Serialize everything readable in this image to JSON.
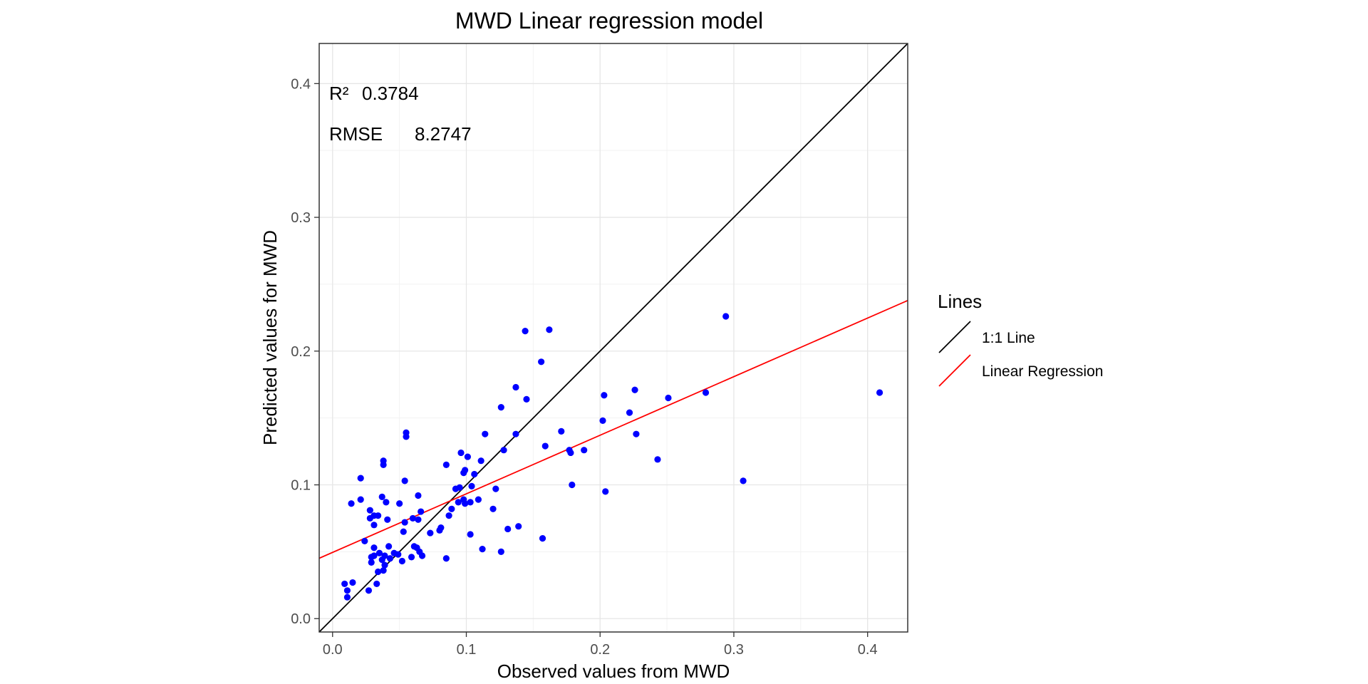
{
  "chart_data": {
    "type": "scatter",
    "title": "MWD  Linear regression model",
    "xlabel": "Observed values from MWD",
    "ylabel": "Predicted values for MWD",
    "xlim": [
      -0.01,
      0.43
    ],
    "ylim": [
      -0.01,
      0.43
    ],
    "x_ticks": [
      0.0,
      0.1,
      0.2,
      0.3,
      0.4
    ],
    "y_ticks": [
      0.0,
      0.1,
      0.2,
      0.3,
      0.4
    ],
    "x_tick_labels": [
      "0.0",
      "0.1",
      "0.2",
      "0.3",
      "0.4"
    ],
    "y_tick_labels": [
      "0.0",
      "0.1",
      "0.2",
      "0.3",
      "0.4"
    ],
    "grid": true,
    "annotations": {
      "r2_label": "R²",
      "r2_value": "0.3784",
      "rmse_label": "RMSE",
      "rmse_value": "8.2747"
    },
    "legend": {
      "title": "Lines",
      "position": "right",
      "entries": [
        "1:1 Line",
        "Linear Regression"
      ]
    },
    "lines": {
      "identity": {
        "name": "1:1 Line",
        "slope": 1.0,
        "intercept": 0.0,
        "color": "#000000"
      },
      "regression": {
        "name": "Linear Regression",
        "slope": 0.438,
        "intercept": 0.0495,
        "color": "#ff0000"
      }
    },
    "point_color": "#0000ff",
    "points": [
      {
        "x": 0.009,
        "y": 0.026
      },
      {
        "x": 0.011,
        "y": 0.021
      },
      {
        "x": 0.011,
        "y": 0.016
      },
      {
        "x": 0.015,
        "y": 0.027
      },
      {
        "x": 0.014,
        "y": 0.086
      },
      {
        "x": 0.021,
        "y": 0.105
      },
      {
        "x": 0.021,
        "y": 0.089
      },
      {
        "x": 0.024,
        "y": 0.058
      },
      {
        "x": 0.027,
        "y": 0.021
      },
      {
        "x": 0.028,
        "y": 0.081
      },
      {
        "x": 0.028,
        "y": 0.075
      },
      {
        "x": 0.029,
        "y": 0.046
      },
      {
        "x": 0.029,
        "y": 0.042
      },
      {
        "x": 0.031,
        "y": 0.053
      },
      {
        "x": 0.031,
        "y": 0.047
      },
      {
        "x": 0.031,
        "y": 0.077
      },
      {
        "x": 0.031,
        "y": 0.07
      },
      {
        "x": 0.033,
        "y": 0.026
      },
      {
        "x": 0.034,
        "y": 0.035
      },
      {
        "x": 0.034,
        "y": 0.077
      },
      {
        "x": 0.035,
        "y": 0.049
      },
      {
        "x": 0.037,
        "y": 0.091
      },
      {
        "x": 0.037,
        "y": 0.044
      },
      {
        "x": 0.038,
        "y": 0.036
      },
      {
        "x": 0.038,
        "y": 0.115
      },
      {
        "x": 0.038,
        "y": 0.118
      },
      {
        "x": 0.039,
        "y": 0.04
      },
      {
        "x": 0.039,
        "y": 0.047
      },
      {
        "x": 0.04,
        "y": 0.087
      },
      {
        "x": 0.041,
        "y": 0.074
      },
      {
        "x": 0.042,
        "y": 0.054
      },
      {
        "x": 0.043,
        "y": 0.045
      },
      {
        "x": 0.046,
        "y": 0.049
      },
      {
        "x": 0.049,
        "y": 0.048
      },
      {
        "x": 0.05,
        "y": 0.086
      },
      {
        "x": 0.052,
        "y": 0.043
      },
      {
        "x": 0.053,
        "y": 0.065
      },
      {
        "x": 0.054,
        "y": 0.072
      },
      {
        "x": 0.054,
        "y": 0.103
      },
      {
        "x": 0.055,
        "y": 0.136
      },
      {
        "x": 0.055,
        "y": 0.139
      },
      {
        "x": 0.059,
        "y": 0.046
      },
      {
        "x": 0.06,
        "y": 0.075
      },
      {
        "x": 0.061,
        "y": 0.054
      },
      {
        "x": 0.063,
        "y": 0.053
      },
      {
        "x": 0.064,
        "y": 0.074
      },
      {
        "x": 0.064,
        "y": 0.092
      },
      {
        "x": 0.065,
        "y": 0.05
      },
      {
        "x": 0.066,
        "y": 0.08
      },
      {
        "x": 0.067,
        "y": 0.047
      },
      {
        "x": 0.073,
        "y": 0.064
      },
      {
        "x": 0.08,
        "y": 0.066
      },
      {
        "x": 0.081,
        "y": 0.068
      },
      {
        "x": 0.085,
        "y": 0.045
      },
      {
        "x": 0.085,
        "y": 0.115
      },
      {
        "x": 0.087,
        "y": 0.077
      },
      {
        "x": 0.089,
        "y": 0.082
      },
      {
        "x": 0.092,
        "y": 0.097
      },
      {
        "x": 0.094,
        "y": 0.087
      },
      {
        "x": 0.095,
        "y": 0.098
      },
      {
        "x": 0.096,
        "y": 0.124
      },
      {
        "x": 0.098,
        "y": 0.109
      },
      {
        "x": 0.098,
        "y": 0.089
      },
      {
        "x": 0.099,
        "y": 0.086
      },
      {
        "x": 0.099,
        "y": 0.111
      },
      {
        "x": 0.101,
        "y": 0.121
      },
      {
        "x": 0.103,
        "y": 0.063
      },
      {
        "x": 0.103,
        "y": 0.087
      },
      {
        "x": 0.104,
        "y": 0.099
      },
      {
        "x": 0.106,
        "y": 0.108
      },
      {
        "x": 0.109,
        "y": 0.089
      },
      {
        "x": 0.111,
        "y": 0.118
      },
      {
        "x": 0.112,
        "y": 0.052
      },
      {
        "x": 0.114,
        "y": 0.138
      },
      {
        "x": 0.12,
        "y": 0.082
      },
      {
        "x": 0.122,
        "y": 0.097
      },
      {
        "x": 0.126,
        "y": 0.158
      },
      {
        "x": 0.126,
        "y": 0.05
      },
      {
        "x": 0.128,
        "y": 0.126
      },
      {
        "x": 0.131,
        "y": 0.067
      },
      {
        "x": 0.137,
        "y": 0.173
      },
      {
        "x": 0.137,
        "y": 0.138
      },
      {
        "x": 0.139,
        "y": 0.069
      },
      {
        "x": 0.144,
        "y": 0.215
      },
      {
        "x": 0.145,
        "y": 0.164
      },
      {
        "x": 0.156,
        "y": 0.192
      },
      {
        "x": 0.157,
        "y": 0.06
      },
      {
        "x": 0.159,
        "y": 0.129
      },
      {
        "x": 0.162,
        "y": 0.216
      },
      {
        "x": 0.171,
        "y": 0.14
      },
      {
        "x": 0.177,
        "y": 0.126
      },
      {
        "x": 0.178,
        "y": 0.124
      },
      {
        "x": 0.179,
        "y": 0.1
      },
      {
        "x": 0.188,
        "y": 0.126
      },
      {
        "x": 0.202,
        "y": 0.148
      },
      {
        "x": 0.203,
        "y": 0.167
      },
      {
        "x": 0.204,
        "y": 0.095
      },
      {
        "x": 0.222,
        "y": 0.154
      },
      {
        "x": 0.226,
        "y": 0.171
      },
      {
        "x": 0.227,
        "y": 0.138
      },
      {
        "x": 0.243,
        "y": 0.119
      },
      {
        "x": 0.251,
        "y": 0.165
      },
      {
        "x": 0.279,
        "y": 0.169
      },
      {
        "x": 0.294,
        "y": 0.226
      },
      {
        "x": 0.307,
        "y": 0.103
      },
      {
        "x": 0.409,
        "y": 0.169
      }
    ]
  }
}
